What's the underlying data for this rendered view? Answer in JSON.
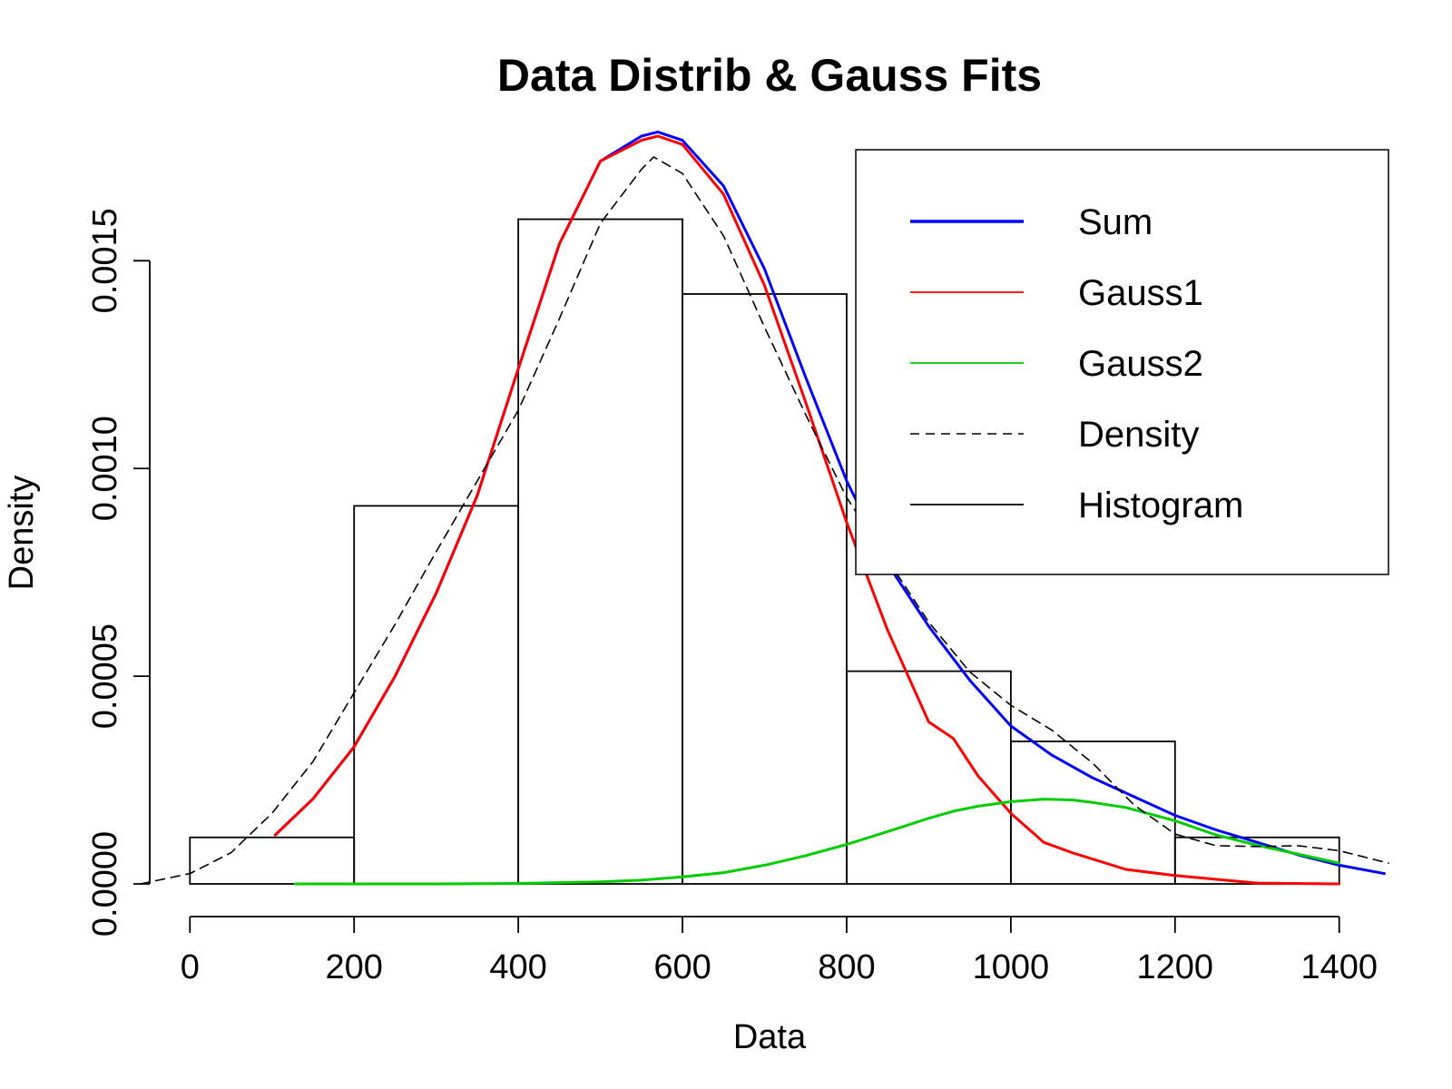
{
  "chart_data": {
    "type": "histogram",
    "title": "Data Distrib & Gauss Fits",
    "xlabel": "Data",
    "ylabel": "Density",
    "xlim": [
      -60,
      1460
    ],
    "ylim": [
      0,
      0.0018
    ],
    "x_ticks": [
      0,
      200,
      400,
      600,
      800,
      1000,
      1200,
      1400
    ],
    "x_tick_labels": [
      "0",
      "200",
      "400",
      "600",
      "800",
      "1000",
      "1200",
      "1400"
    ],
    "y_ticks": [
      0,
      0.0005,
      0.001,
      0.0015
    ],
    "y_tick_labels": [
      "0.0000",
      "0.0005",
      "0.0010",
      "0.0015"
    ],
    "grid": false,
    "legend_position": "top-right",
    "colors": {
      "sum": "#0000ff",
      "gauss1": "#ff0000",
      "gauss2": "#00cc00",
      "density": "#000000",
      "histogram": "#000000"
    },
    "histogram": {
      "name": "Histogram",
      "bins": [
        [
          0,
          200
        ],
        [
          200,
          400
        ],
        [
          400,
          600
        ],
        [
          600,
          800
        ],
        [
          800,
          1000
        ],
        [
          1000,
          1200
        ],
        [
          1200,
          1400
        ]
      ],
      "density": [
        0.000112,
        0.00091,
        0.0016,
        0.00142,
        0.000512,
        0.000343,
        0.000112
      ]
    },
    "series": [
      {
        "name": "Sum",
        "color": "#0000ff",
        "style": "solid",
        "width": 3,
        "x": [
          104,
          150,
          200,
          250,
          300,
          350,
          400,
          450,
          500,
          550,
          570,
          600,
          650,
          700,
          750,
          800,
          850,
          900,
          950,
          1000,
          1050,
          1100,
          1150,
          1200,
          1250,
          1300,
          1350,
          1400,
          1455
        ],
        "y": [
          0.000118,
          0.000205,
          0.00033,
          0.0005,
          0.0007,
          0.000935,
          0.00124,
          0.00154,
          0.00174,
          0.0018,
          0.00181,
          0.00179,
          0.00168,
          0.00148,
          0.00122,
          0.00097,
          0.00077,
          0.00062,
          0.00049,
          0.00038,
          0.00031,
          0.000255,
          0.00021,
          0.000165,
          0.00013,
          0.0001,
          7e-05,
          4.5e-05,
          2.5e-05
        ]
      },
      {
        "name": "Gauss1",
        "color": "#ff0000",
        "style": "solid",
        "width": 3,
        "x": [
          104,
          150,
          200,
          250,
          300,
          350,
          400,
          450,
          500,
          550,
          570,
          600,
          650,
          700,
          750,
          800,
          850,
          900,
          930,
          960,
          1000,
          1040,
          1075,
          1140,
          1200,
          1300,
          1400
        ],
        "y": [
          0.000118,
          0.000205,
          0.00033,
          0.0005,
          0.0007,
          0.000935,
          0.00124,
          0.00154,
          0.00174,
          0.00179,
          0.0018,
          0.00178,
          0.00166,
          0.00144,
          0.00116,
          0.00087,
          0.00061,
          0.00039,
          0.00035,
          0.00026,
          0.00017,
          0.0001,
          7.5e-05,
          3.5e-05,
          2e-05,
          2e-06,
          0.0
        ]
      },
      {
        "name": "Gauss2",
        "color": "#00cc00",
        "style": "solid",
        "width": 3,
        "x": [
          128,
          200,
          300,
          400,
          500,
          550,
          600,
          650,
          700,
          750,
          800,
          850,
          900,
          930,
          960,
          1000,
          1040,
          1075,
          1100,
          1140,
          1200,
          1250,
          1300,
          1400
        ],
        "y": [
          0.0,
          0.0,
          0.0,
          1e-06,
          5e-06,
          9e-06,
          1.7e-05,
          2.7e-05,
          4.5e-05,
          6.8e-05,
          9.5e-05,
          0.000126,
          0.000158,
          0.000175,
          0.000187,
          0.000198,
          0.000204,
          0.000202,
          0.000196,
          0.000184,
          0.000152,
          0.000118,
          9.3e-05,
          5e-05
        ]
      },
      {
        "name": "Density",
        "color": "#000000",
        "style": "dashed",
        "width": 1.6,
        "x": [
          -60,
          0,
          50,
          100,
          150,
          200,
          250,
          300,
          350,
          400,
          450,
          500,
          550,
          565,
          600,
          650,
          700,
          750,
          800,
          850,
          900,
          950,
          1000,
          1050,
          1100,
          1150,
          1200,
          1250,
          1300,
          1350,
          1400,
          1460
        ],
        "y": [
          0.0,
          2.5e-05,
          7.5e-05,
          0.00017,
          0.000295,
          0.00046,
          0.000625,
          0.0008,
          0.00097,
          0.00114,
          0.00136,
          0.00159,
          0.00172,
          0.00175,
          0.00171,
          0.00156,
          0.00134,
          0.00113,
          0.00093,
          0.00078,
          0.00063,
          0.00051,
          0.00043,
          0.00037,
          0.00029,
          0.00019,
          0.00012,
          9.2e-05,
          9e-05,
          9.2e-05,
          8e-05,
          5e-05
        ]
      }
    ],
    "legend": [
      {
        "label": "Sum",
        "color": "#0000ff",
        "style": "solid",
        "width": 3.5
      },
      {
        "label": "Gauss1",
        "color": "#ff0000",
        "style": "solid",
        "width": 1.8
      },
      {
        "label": "Gauss2",
        "color": "#00cc00",
        "style": "solid",
        "width": 1.8
      },
      {
        "label": "Density",
        "color": "#000000",
        "style": "dashed",
        "width": 1.6
      },
      {
        "label": "Histogram",
        "color": "#000000",
        "style": "solid",
        "width": 1.8
      }
    ]
  }
}
